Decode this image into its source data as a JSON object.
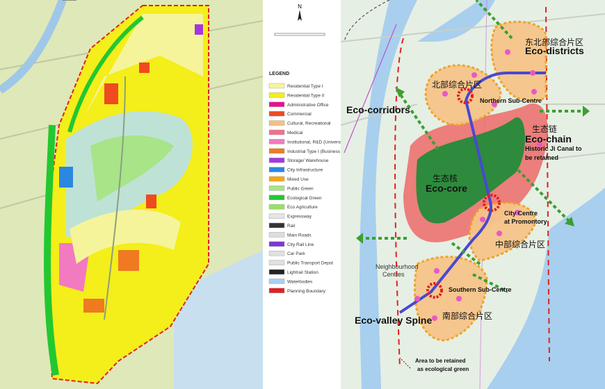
{
  "left_map": {
    "north_label": "N",
    "legend": {
      "title": "LEGEND",
      "items": [
        {
          "label": "Residential Type I",
          "color": "#f6f49a"
        },
        {
          "label": "Residential Type II",
          "color": "#f4ee1a"
        },
        {
          "label": "Administrative Office",
          "color": "#e8108c"
        },
        {
          "label": "Commercial",
          "color": "#f04a20"
        },
        {
          "label": "Cultural, Recreational",
          "color": "#f5bf82"
        },
        {
          "label": "Medical",
          "color": "#f0708a"
        },
        {
          "label": "Institutional, R&D (University)",
          "color": "#f27ac0"
        },
        {
          "label": "Industrial Type I (Business Park)",
          "color": "#f07a22"
        },
        {
          "label": "Storage/ Warehouse",
          "color": "#a436e0"
        },
        {
          "label": "City Infrastructure",
          "color": "#2a88e0"
        },
        {
          "label": "Mixed Use",
          "color": "#f4a816"
        },
        {
          "label": "Public Green",
          "color": "#a8e488"
        },
        {
          "label": "Ecological Green",
          "color": "#22c830"
        },
        {
          "label": "Eco Agriculture",
          "color": "#98e060"
        },
        {
          "label": "Expressway",
          "color": "#e4e4e4"
        },
        {
          "label": "Rail",
          "color": "#333333"
        },
        {
          "label": "Main Roads",
          "color": "#dddddd"
        },
        {
          "label": "City Rail Line",
          "color": "#7a3ad0"
        },
        {
          "label": "Car Park",
          "color": "#e0e0e0"
        },
        {
          "label": "Public Transport Depot",
          "color": "#e0e0e0"
        },
        {
          "label": "Lightrail Station",
          "color": "#222222"
        },
        {
          "label": "Waterbodies",
          "color": "#a8d0f4"
        },
        {
          "label": "Planning Boundary",
          "color": "#e02020"
        }
      ]
    }
  },
  "right_map": {
    "labels": {
      "ne_cn": "东北部综合片区",
      "ne_en": "Eco-districts",
      "north_cn": "北部综合片区",
      "north_sub": "Northern Sub-Centre",
      "eco_corridors": "Eco-corridors",
      "chain_cn": "生态链",
      "chain_en": "Eco-chain",
      "canal_1": "Historic Ji Canal to",
      "canal_2": "be retained",
      "core_cn": "生态核",
      "core_en": "Eco-core",
      "city_centre_1": "City Centre",
      "city_centre_2": "at Promontory",
      "mid_cn": "中部综合片区",
      "neighbourhood_1": "Neighbourhood",
      "neighbourhood_2": "Centres",
      "south_sub": "Southern Sub-Centre",
      "valley": "Eco-valley Spine",
      "south_cn": "南部综合片区",
      "retain_1": "Area to be retained",
      "retain_2": "as ecological green"
    },
    "colors": {
      "district_fill": "#f6c48a",
      "district_border": "#f0a020",
      "eco_chain": "#ec6a6a",
      "eco_core": "#2e8a3c",
      "rail_line": "#4848d0",
      "centre_marker": "#e02020",
      "node": "#e858c8",
      "corridor_arrow": "#3aa030",
      "water": "#a8cfee"
    }
  }
}
